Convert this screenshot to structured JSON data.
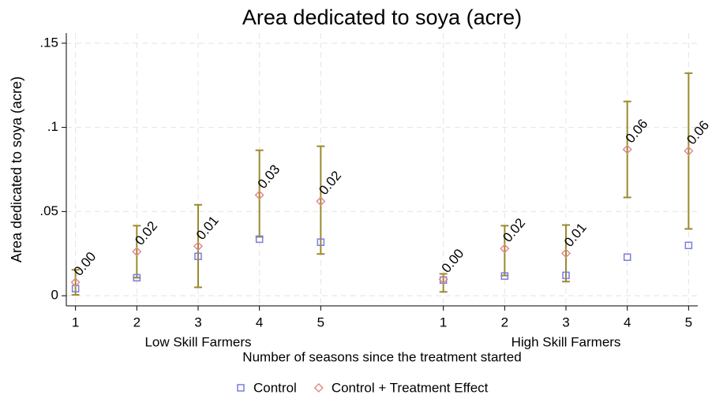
{
  "chart_data": {
    "type": "scatter",
    "title": "Area dedicated to soya (acre)",
    "y_label": "Area dedicated to soya (acre)",
    "x_label": "Number of seasons since the treatment started",
    "groups": [
      {
        "name": "Low Skill Farmers",
        "center": 3
      },
      {
        "name": "High Skill Farmers",
        "center": 9
      }
    ],
    "xlim": [
      0.85,
      11.15
    ],
    "xticks": [
      1,
      2,
      3,
      4,
      5,
      {
        "value": 7,
        "label": "1"
      },
      {
        "value": 8,
        "label": "2"
      },
      {
        "value": 9,
        "label": "3"
      },
      {
        "value": 10,
        "label": "4"
      },
      {
        "value": 11,
        "label": "5"
      }
    ],
    "ylim": [
      -0.006,
      0.156
    ],
    "yticks": [
      0,
      {
        "value": 0.05,
        "label": ".05"
      },
      {
        "value": 0.1,
        "label": ".1"
      },
      {
        "value": 0.15,
        "label": ".15"
      }
    ],
    "grid": true,
    "legend": "bottom",
    "x": [
      1,
      2,
      3,
      4,
      5,
      7,
      8,
      9,
      10,
      11
    ],
    "series": [
      {
        "name": "Control",
        "color": "#7b7be0",
        "marker": "square",
        "values": [
          0.0042,
          0.0107,
          0.0234,
          0.0336,
          0.0318,
          0.0093,
          0.0117,
          0.0121,
          0.0229,
          0.0299
        ]
      },
      {
        "name": "Control + Treatment Effect",
        "color": "#e08a8a",
        "marker": "diamond",
        "values": [
          0.008,
          0.0262,
          0.0294,
          0.0598,
          0.0561,
          0.0098,
          0.028,
          0.0252,
          0.0869,
          0.086
        ],
        "ci_low": [
          0.0005,
          0.0107,
          0.005,
          0.035,
          0.0248,
          0.0023,
          0.012,
          0.0084,
          0.0584,
          0.0397
        ],
        "ci_high": [
          0.0154,
          0.0416,
          0.054,
          0.0864,
          0.0888,
          0.013,
          0.0416,
          0.042,
          0.1154,
          0.1322
        ],
        "ci_color": "#9a8a2e",
        "value_labels": [
          "0.00",
          "0.02",
          "0.01",
          "0.03",
          "0.02",
          "0.00",
          "0.02",
          "0.01",
          "0.06",
          "0.06"
        ]
      }
    ]
  }
}
